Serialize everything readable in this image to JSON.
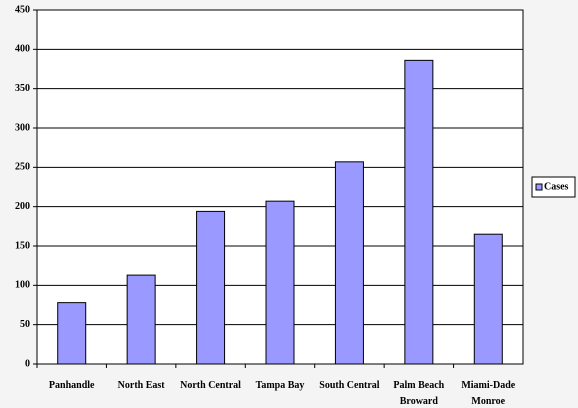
{
  "chart_data": {
    "type": "bar",
    "categories": [
      "Panhandle",
      "North East",
      "North Central",
      "Tampa Bay",
      "South Central",
      "Palm Beach Broward",
      "Miami-Dade Monroe"
    ],
    "series": [
      {
        "name": "Cases",
        "color": "#9999ff",
        "values": [
          78,
          113,
          194,
          207,
          257,
          386,
          165
        ]
      }
    ],
    "ylim": [
      0,
      450
    ],
    "yticks": [
      0,
      50,
      100,
      150,
      200,
      250,
      300,
      350,
      400,
      450
    ],
    "grid": true,
    "legend": "right"
  }
}
